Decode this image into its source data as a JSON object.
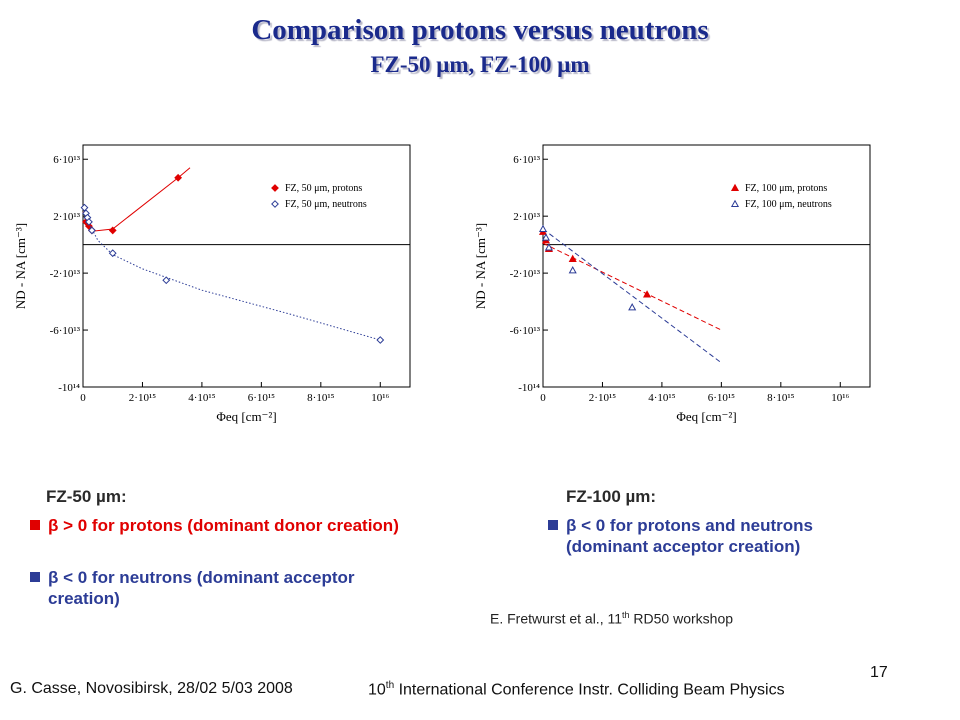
{
  "title": "Comparison protons versus neutrons",
  "subtitle": "FZ-50 μm, FZ-100 μm",
  "chart_data": [
    {
      "type": "scatter",
      "xlim": [
        0,
        1.1e+16
      ],
      "ylim": [
        -100000000000000.0,
        70000000000000.0
      ],
      "x_ticks": [
        "0",
        "2·10¹⁵",
        "4·10¹⁵",
        "6·10¹⁵",
        "8·10¹⁵",
        "10¹⁶"
      ],
      "y_ticks": [
        "6·10¹³",
        "2·10¹³",
        "-2·10¹³",
        "-6·10¹³",
        "-10¹⁴"
      ],
      "xlabel": "Φeq [cm⁻²]",
      "ylabel": "ND - NA [cm⁻³]",
      "legend_position": "top-right",
      "grid": false,
      "series": [
        {
          "name": "FZ, 50 μm, protons",
          "color": "#e00000",
          "marker": "filled-diamond",
          "line": "solid",
          "x": [
            100000000000000.0,
            200000000000000.0,
            300000000000000.0,
            1000000000000000.0,
            3200000000000000.0
          ],
          "y": [
            16000000000000.0,
            13000000000000.0,
            10000000000000.0,
            10000000000000.0,
            47000000000000.0
          ],
          "fit_x": [
            0,
            350000000000000.0,
            1000000000000000.0,
            3200000000000000.0,
            3600000000000000.0
          ],
          "fit_y": [
            23000000000000.0,
            9500000000000.0,
            11000000000000.0,
            47000000000000.0,
            54000000000000.0
          ]
        },
        {
          "name": "FZ, 50 μm, neutrons",
          "color": "#2c3c96",
          "marker": "open-diamond",
          "line": "dotted",
          "x": [
            50000000000000.0,
            100000000000000.0,
            150000000000000.0,
            200000000000000.0,
            300000000000000.0,
            1000000000000000.0,
            2800000000000000.0,
            1e+16
          ],
          "y": [
            26000000000000.0,
            22000000000000.0,
            19000000000000.0,
            16000000000000.0,
            10000000000000.0,
            -6000000000000.0,
            -25000000000000.0,
            -67000000000000.0
          ],
          "fit_x": [
            0,
            200000000000000.0,
            500000000000000.0,
            1000000000000000.0,
            2000000000000000.0,
            4000000000000000.0,
            7000000000000000.0,
            1e+16
          ],
          "fit_y": [
            27000000000000.0,
            15000000000000.0,
            3000000000000.0,
            -7000000000000.0,
            -17000000000000.0,
            -32000000000000.0,
            -49000000000000.0,
            -67000000000000.0
          ]
        }
      ]
    },
    {
      "type": "scatter",
      "xlim": [
        0,
        1.1e+16
      ],
      "ylim": [
        -100000000000000.0,
        70000000000000.0
      ],
      "x_ticks": [
        "0",
        "2·10¹⁵",
        "4·10¹⁵",
        "6·10¹⁵",
        "8·10¹⁵",
        "10¹⁶"
      ],
      "y_ticks": [
        "6·10¹³",
        "2·10¹³",
        "-2·10¹³",
        "-6·10¹³",
        "-10¹⁴"
      ],
      "xlabel": "Φeq [cm⁻²]",
      "ylabel": "ND - NA [cm⁻³]",
      "legend_position": "top-right",
      "grid": false,
      "series": [
        {
          "name": "FZ, 100 μm, protons",
          "color": "#e00000",
          "marker": "filled-triangle",
          "line": "dashed",
          "x": [
            0,
            100000000000000.0,
            200000000000000.0,
            1000000000000000.0,
            3500000000000000.0
          ],
          "y": [
            9000000000000.0,
            3000000000000.0,
            -3000000000000.0,
            -10000000000000.0,
            -35000000000000.0
          ],
          "fit_x": [
            0,
            6000000000000000.0
          ],
          "fit_y": [
            1000000000000.0,
            -60000000000000.0
          ]
        },
        {
          "name": "FZ, 100 μm, neutrons",
          "color": "#2c3c96",
          "marker": "open-triangle",
          "line": "dashed",
          "x": [
            0,
            100000000000000.0,
            200000000000000.0,
            1000000000000000.0,
            3000000000000000.0
          ],
          "y": [
            11000000000000.0,
            5000000000000.0,
            -2000000000000.0,
            -18000000000000.0,
            -44000000000000.0
          ],
          "fit_x": [
            0,
            6000000000000000.0
          ],
          "fit_y": [
            11000000000000.0,
            -83000000000000.0
          ]
        }
      ]
    }
  ],
  "left_text": {
    "heading": "FZ-50 µm:",
    "bullet1": "β > 0 for protons (dominant donor creation)",
    "bullet2_line1": "β < 0 for neutrons (dominant acceptor",
    "bullet2_line2": "creation)"
  },
  "right_text": {
    "heading": "FZ-100 µm:",
    "bullet1_line1": "β < 0 for protons and neutrons",
    "bullet1_line2": "(dominant acceptor creation)"
  },
  "citation": {
    "pre": "E. Fretwurst et al., 11",
    "sup": "th",
    "post": " RD50 workshop"
  },
  "footer": {
    "author": "G. Casse, Novosibirsk, 28/02 5/03 2008",
    "conf_pre": "10",
    "conf_sup": "th",
    "conf_post": " International Conference Instr. Colliding Beam Physics",
    "page_number": "17"
  }
}
